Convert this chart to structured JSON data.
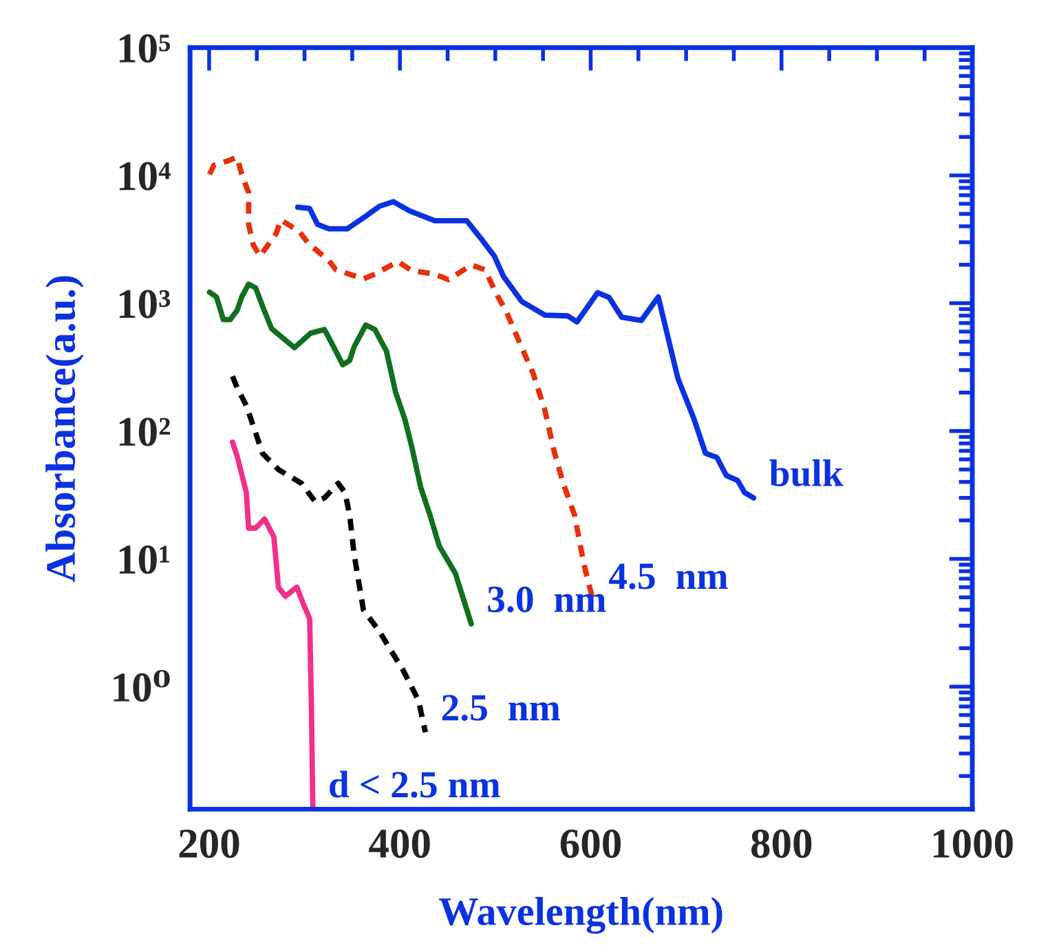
{
  "chart_data": {
    "type": "line",
    "xlabel": "Wavelength(nm)",
    "ylabel": "Absorbance(a.u.)",
    "log": "y",
    "grid": false,
    "legend": false,
    "marker": "none",
    "xlim": [
      180,
      1000
    ],
    "xticks": [
      200,
      400,
      600,
      800,
      1000
    ],
    "ylim": [
      0.11,
      100000
    ],
    "yticks": [
      {
        "value": 1,
        "label": "10⁰"
      },
      {
        "value": 10,
        "label": "10¹"
      },
      {
        "value": 100,
        "label": "10²"
      },
      {
        "value": 1000,
        "label": "10³"
      },
      {
        "value": 10000,
        "label": "10⁴"
      },
      {
        "value": 100000,
        "label": "10⁵"
      }
    ],
    "series": [
      {
        "name": "bulk",
        "color": "#0a32e0",
        "line_style": "solid",
        "x": [
          292.9,
          305.4,
          313.6,
          325.6,
          344.8,
          364.2,
          378.6,
          393.1,
          409.8,
          436.4,
          470.0,
          484.5,
          498.9,
          508.6,
          527.8,
          551.9,
          575.9,
          585.6,
          607.2,
          619.2,
          632.5,
          653.0,
          670.8,
          691.4,
          708.3,
          720.3,
          732.4,
          742.0,
          754.1,
          761.3,
          770.8
        ],
        "values": [
          5650,
          5510,
          4140,
          3820,
          3820,
          4800,
          5740,
          6240,
          5290,
          4420,
          4420,
          3240,
          2340,
          1620,
          1030,
          807,
          796,
          714,
          1210,
          1110,
          777,
          733,
          1120,
          258,
          124,
          67,
          62,
          45,
          41,
          33,
          30
        ]
      },
      {
        "name": "4.5  nm",
        "color": "#e8300a",
        "line_style": "dashed",
        "x": [
          200.4,
          205.0,
          219.8,
          229.3,
          234.2,
          241.4,
          241.4,
          246.2,
          253.4,
          270.3,
          275.1,
          294.3,
          304.0,
          325.6,
          332.9,
          361.7,
          373.7,
          397.8,
          412.3,
          436.4,
          450.8,
          474.8,
          489.2,
          501.4,
          510.9,
          525.3,
          539.8,
          551.9,
          561.5,
          571.1,
          583.1,
          592.8,
          602.5
        ],
        "values": [
          10200,
          12000,
          13000,
          13900,
          10200,
          7330,
          4140,
          2870,
          2340,
          3510,
          4490,
          3660,
          2940,
          2150,
          1830,
          1550,
          1690,
          2120,
          1800,
          1690,
          1530,
          1990,
          1830,
          1170,
          879,
          495,
          280,
          146,
          70,
          39,
          22,
          9.1,
          4.7
        ]
      },
      {
        "name": "3.0  nm",
        "color": "#107020",
        "line_style": "solid",
        "x": [
          200.4,
          207.7,
          214.9,
          222.1,
          229.3,
          234.2,
          241.4,
          248.7,
          255.9,
          265.5,
          289.5,
          306.4,
          320.9,
          330.4,
          340.1,
          347.3,
          352.1,
          364.2,
          373.7,
          385.9,
          395.4,
          405.1,
          412.3,
          421.9,
          431.5,
          441.2,
          458.1,
          474.8
        ],
        "values": [
          1220,
          1120,
          745,
          745,
          879,
          1120,
          1410,
          1320,
          952,
          632,
          449,
          583,
          623,
          457,
          330,
          357,
          457,
          676,
          623,
          421,
          202,
          124,
          76,
          36,
          22,
          12.6,
          7.7,
          3.1
        ]
      },
      {
        "name": "2.5  nm",
        "color": "#000000",
        "line_style": "dashed",
        "x": [
          224.5,
          229.3,
          239.0,
          248.7,
          255.9,
          272.6,
          296.8,
          311.2,
          320.9,
          335.3,
          342.5,
          347.3,
          352.1,
          361.7,
          378.6,
          390.6,
          402.6,
          419.5,
          426.7
        ],
        "values": [
          268,
          219,
          158,
          97,
          67,
          50,
          39,
          28,
          30,
          39,
          33,
          22,
          10.7,
          4.0,
          2.7,
          1.92,
          1.38,
          0.78,
          0.44
        ]
      },
      {
        "name": "d < 2.5 nm",
        "color": "#f0308a",
        "line_style": "solid",
        "x": [
          224.5,
          229.3,
          239.0,
          241.4,
          248.7,
          258.2,
          267.9,
          272.6,
          279.9,
          292.0,
          299.2,
          305.4,
          307.3,
          308.7
        ],
        "values": [
          82,
          64,
          33,
          17.4,
          17.4,
          20.5,
          14.8,
          6.0,
          5.1,
          6.0,
          4.35,
          3.4,
          0.66,
          0.11
        ]
      }
    ]
  }
}
